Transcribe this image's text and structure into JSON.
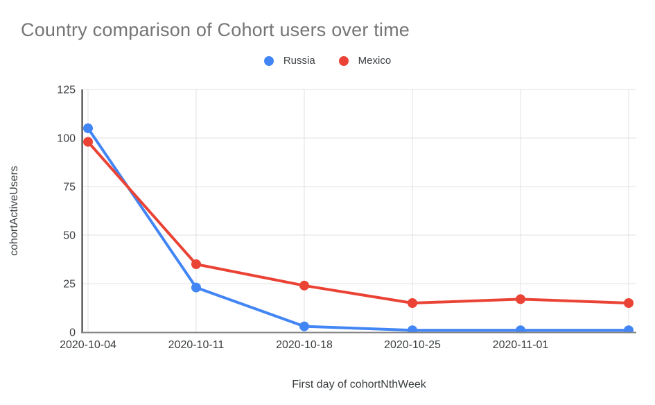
{
  "chart": {
    "title_color": "#757575",
    "text_color": "#3c4043",
    "gridline_color": "#e0e0e0",
    "y_axis_line_color": "#333333",
    "baseline_color": "#858585"
  },
  "chart_data": {
    "type": "line",
    "title": "Country comparison of Cohort users over time",
    "xlabel": "First day of cohortNthWeek",
    "ylabel": "cohortActiveUsers",
    "categories": [
      "2020-10-04",
      "2020-10-11",
      "2020-10-18",
      "2020-10-25",
      "2020-11-01",
      ""
    ],
    "series": [
      {
        "name": "Russia",
        "color": "#4285F4",
        "values": [
          105,
          23,
          3,
          1,
          1,
          1
        ]
      },
      {
        "name": "Mexico",
        "color": "#EA4335",
        "values": [
          98,
          35,
          24,
          15,
          17,
          15
        ]
      }
    ],
    "y_ticks": [
      0,
      25,
      50,
      75,
      100,
      125
    ],
    "ylim": [
      0,
      125
    ],
    "grid": true,
    "legend_position": "top"
  }
}
